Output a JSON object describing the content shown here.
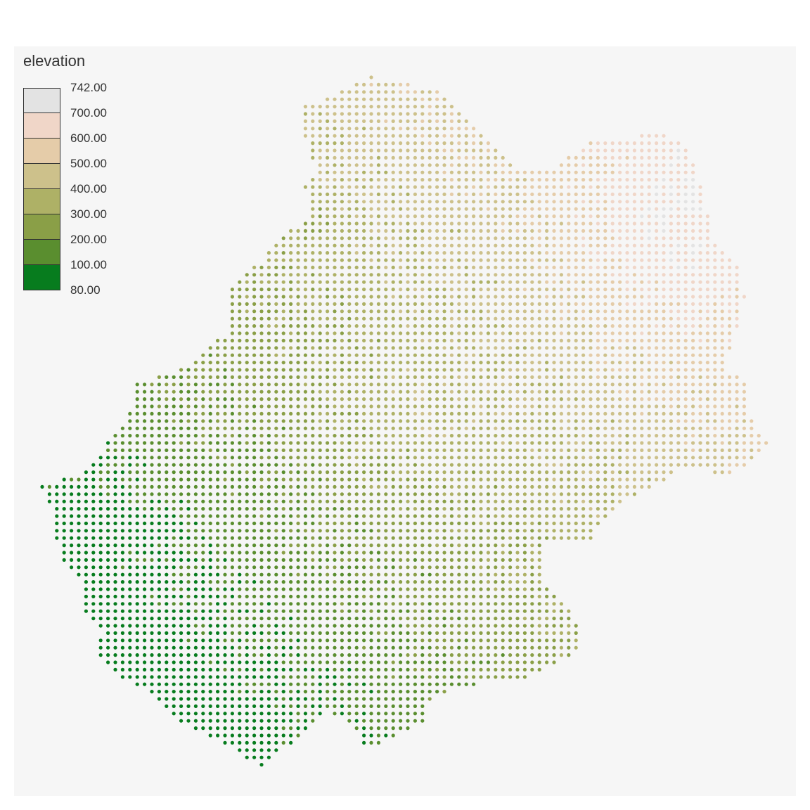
{
  "legend": {
    "title": "elevation",
    "breaks": [
      "742.00",
      "700.00",
      "600.00",
      "500.00",
      "400.00",
      "300.00",
      "200.00",
      "100.00",
      "80.00"
    ],
    "colors": [
      "#e3e3e3",
      "#f0d6c8",
      "#e5cca9",
      "#cdc18b",
      "#aeb166",
      "#8a9f47",
      "#5a8e2f",
      "#077c1e"
    ]
  },
  "map": {
    "background": "#f6f6f6",
    "variable": "elevation",
    "value_range": [
      80,
      742
    ]
  }
}
